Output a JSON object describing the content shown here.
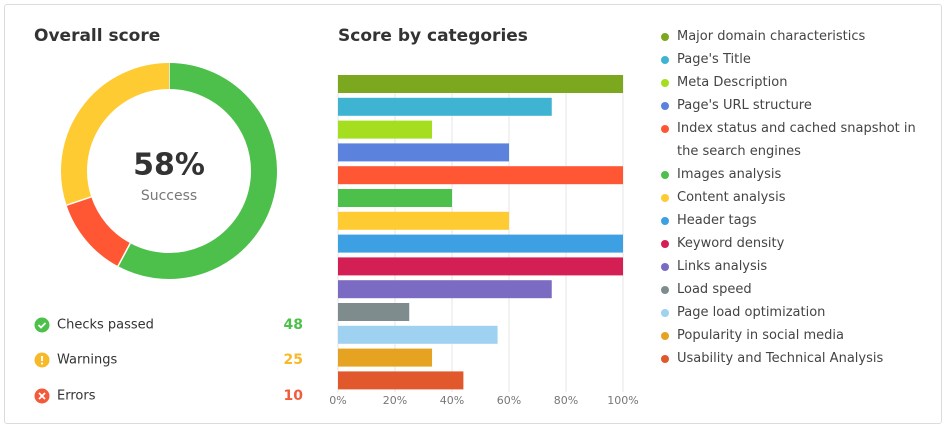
{
  "chart_data": [
    {
      "type": "donut",
      "title": "Overall score",
      "center_label": "58%",
      "center_sublabel": "Success",
      "categories": [
        "Checks passed",
        "Warnings",
        "Errors"
      ],
      "values": [
        48,
        25,
        10
      ],
      "colors": [
        "#4cc04a",
        "#f7b928",
        "#f15a3a"
      ],
      "donut_colors": [
        "#4cc04a",
        "#ffcb32",
        "#ff5733"
      ]
    },
    {
      "type": "hbar",
      "title": "Score by categories",
      "categories": [
        "Major domain characteristics",
        "Page's Title",
        "Meta Description",
        "Page's URL structure",
        "Index status and cached snapshot in the search engines",
        "Images analysis",
        "Content analysis",
        "Header tags",
        "Keyword density",
        "Links analysis",
        "Load speed",
        "Page load optimization",
        "Popularity in social media",
        "Usability and Technical Analysis"
      ],
      "values": [
        100,
        75,
        33,
        60,
        100,
        40,
        60,
        100,
        100,
        75,
        25,
        56,
        33,
        44
      ],
      "colors": [
        "#7ba81f",
        "#3fb4d2",
        "#a4de1f",
        "#5b82dd",
        "#ff5733",
        "#4cc04a",
        "#ffcb32",
        "#3da0e3",
        "#d41f55",
        "#7c6bc2",
        "#7f8c8d",
        "#9fd1f1",
        "#e6a322",
        "#e0582c"
      ],
      "xlim": [
        0,
        100
      ],
      "xticks": [
        {
          "value": 0,
          "label": "0%"
        },
        {
          "value": 20,
          "label": "20%"
        },
        {
          "value": 40,
          "label": "40%"
        },
        {
          "value": 60,
          "label": "60%"
        },
        {
          "value": 80,
          "label": "80%"
        },
        {
          "value": 100,
          "label": "100%"
        }
      ],
      "grid": true
    }
  ]
}
